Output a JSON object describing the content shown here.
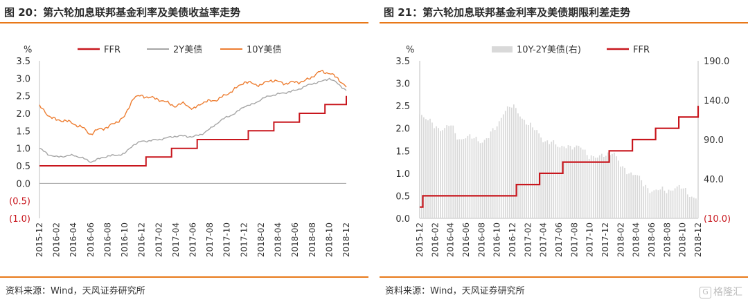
{
  "colors": {
    "accent": "#e87818",
    "ffr": "#c8161d",
    "y2": "#a5a5a5",
    "y10": "#ed7d31",
    "spread": "#d9d9d9",
    "negative_tick": "#c8161d"
  },
  "left": {
    "title": "图 20：第六轮加息联邦基金利率及美债收益率走势",
    "source": "资料来源：Wind，天风证券研究所"
  },
  "right": {
    "title": "图 21：第六轮加息联邦基金利率及美债期限利差走势",
    "source": "资料来源：Wind，天风证券研究所"
  },
  "watermark": {
    "icon": "G",
    "text": "格隆汇"
  },
  "chart_data": [
    {
      "type": "line",
      "unit_label": "%",
      "ylim": [
        -1.0,
        3.5
      ],
      "y_ticks": [
        "3.5",
        "3.0",
        "2.5",
        "2.0",
        "1.5",
        "1.0",
        "0.5",
        "0.0",
        "(0.5)",
        "(1.0)"
      ],
      "x_ticks": [
        "2015-12",
        "2016-02",
        "2016-04",
        "2016-06",
        "2016-08",
        "2016-10",
        "2016-12",
        "2017-02",
        "2017-04",
        "2017-06",
        "2017-08",
        "2017-10",
        "2017-12",
        "2018-02",
        "2018-04",
        "2018-06",
        "2018-08",
        "2018-10",
        "2018-12"
      ],
      "legend": [
        "FFR",
        "2Y美债",
        "10Y美债"
      ],
      "legend_position": "top",
      "series": [
        {
          "name": "FFR",
          "kind": "step",
          "points": [
            [
              0,
              0.5
            ],
            [
              12.5,
              0.75
            ],
            [
              15.5,
              1.0
            ],
            [
              18.5,
              1.25
            ],
            [
              24.5,
              1.5
            ],
            [
              27.5,
              1.75
            ],
            [
              30.5,
              2.0
            ],
            [
              33.5,
              2.25
            ],
            [
              36.0,
              2.5
            ]
          ]
        },
        {
          "name": "2Y美债",
          "points": [
            [
              0,
              1.0
            ],
            [
              1,
              0.83
            ],
            [
              2,
              0.75
            ],
            [
              3,
              0.78
            ],
            [
              4,
              0.8
            ],
            [
              5,
              0.73
            ],
            [
              6,
              0.61
            ],
            [
              7,
              0.7
            ],
            [
              8,
              0.78
            ],
            [
              9,
              0.8
            ],
            [
              10,
              0.85
            ],
            [
              11,
              1.1
            ],
            [
              12,
              1.2
            ],
            [
              13,
              1.22
            ],
            [
              14,
              1.25
            ],
            [
              15,
              1.3
            ],
            [
              16,
              1.35
            ],
            [
              17,
              1.35
            ],
            [
              18,
              1.33
            ],
            [
              19,
              1.4
            ],
            [
              20,
              1.55
            ],
            [
              21,
              1.75
            ],
            [
              22,
              1.9
            ],
            [
              23,
              2.0
            ],
            [
              24,
              2.2
            ],
            [
              25,
              2.25
            ],
            [
              26,
              2.4
            ],
            [
              27,
              2.5
            ],
            [
              28,
              2.55
            ],
            [
              29,
              2.6
            ],
            [
              30,
              2.65
            ],
            [
              31,
              2.75
            ],
            [
              32,
              2.85
            ],
            [
              33,
              2.9
            ],
            [
              34,
              3.0
            ],
            [
              35,
              2.85
            ],
            [
              36,
              2.65
            ]
          ]
        },
        {
          "name": "10Y美债",
          "points": [
            [
              0,
              2.2
            ],
            [
              1,
              1.95
            ],
            [
              2,
              1.8
            ],
            [
              3,
              1.8
            ],
            [
              4,
              1.7
            ],
            [
              5,
              1.6
            ],
            [
              6,
              1.4
            ],
            [
              7,
              1.55
            ],
            [
              8,
              1.6
            ],
            [
              9,
              1.75
            ],
            [
              10,
              1.9
            ],
            [
              11,
              2.45
            ],
            [
              12,
              2.5
            ],
            [
              13,
              2.45
            ],
            [
              14,
              2.4
            ],
            [
              15,
              2.3
            ],
            [
              16,
              2.2
            ],
            [
              17,
              2.3
            ],
            [
              18,
              2.1
            ],
            [
              19,
              2.3
            ],
            [
              20,
              2.35
            ],
            [
              21,
              2.4
            ],
            [
              22,
              2.55
            ],
            [
              23,
              2.7
            ],
            [
              24,
              2.9
            ],
            [
              25,
              2.85
            ],
            [
              26,
              2.8
            ],
            [
              27,
              2.95
            ],
            [
              28,
              2.9
            ],
            [
              29,
              2.85
            ],
            [
              30,
              2.9
            ],
            [
              31,
              2.9
            ],
            [
              32,
              3.05
            ],
            [
              33,
              3.2
            ],
            [
              34,
              3.15
            ],
            [
              35,
              3.0
            ],
            [
              36,
              2.75
            ]
          ]
        }
      ]
    },
    {
      "type": "bar+line",
      "unit_label": "%",
      "ylim_left": [
        0.0,
        3.5
      ],
      "ylim_right": [
        -10.0,
        190.0
      ],
      "y_ticks_left": [
        "3.5",
        "3.0",
        "2.5",
        "2.0",
        "1.5",
        "1.0",
        "0.5",
        "0.0"
      ],
      "y_ticks_right": [
        "190.0",
        "140.0",
        "90.0",
        "40.0",
        "(10.0)"
      ],
      "x_ticks": [
        "2015-12",
        "2016-02",
        "2016-04",
        "2016-06",
        "2016-08",
        "2016-10",
        "2016-12",
        "2017-02",
        "2017-04",
        "2017-06",
        "2017-08",
        "2017-10",
        "2017-12",
        "2018-02",
        "2018-04",
        "2018-06",
        "2018-08",
        "2018-10",
        "2018-12"
      ],
      "legend": [
        "10Y-2Y美债(右)",
        "FFR"
      ],
      "legend_position": "top",
      "series": [
        {
          "name": "10Y-2Y美债(右)",
          "axis": "right",
          "kind": "bar",
          "points": [
            [
              0,
              125
            ],
            [
              1,
              115
            ],
            [
              2,
              105
            ],
            [
              3,
              105
            ],
            [
              4,
              108
            ],
            [
              5,
              90
            ],
            [
              6,
              95
            ],
            [
              7,
              90
            ],
            [
              8,
              88
            ],
            [
              9,
              95
            ],
            [
              10,
              105
            ],
            [
              11,
              130
            ],
            [
              12,
              132
            ],
            [
              13,
              120
            ],
            [
              14,
              112
            ],
            [
              15,
              100
            ],
            [
              16,
              90
            ],
            [
              17,
              88
            ],
            [
              18,
              78
            ],
            [
              19,
              85
            ],
            [
              20,
              78
            ],
            [
              21,
              80
            ],
            [
              22,
              70
            ],
            [
              23,
              65
            ],
            [
              24,
              72
            ],
            [
              25,
              75
            ],
            [
              26,
              55
            ],
            [
              27,
              50
            ],
            [
              28,
              45
            ],
            [
              29,
              32
            ],
            [
              30,
              26
            ],
            [
              31,
              25
            ],
            [
              32,
              25
            ],
            [
              33,
              30
            ],
            [
              34,
              27
            ],
            [
              35,
              20
            ],
            [
              36,
              15
            ]
          ]
        },
        {
          "name": "FFR",
          "axis": "left",
          "kind": "step",
          "points": [
            [
              0,
              0.25
            ],
            [
              0.4,
              0.5
            ],
            [
              12.5,
              0.75
            ],
            [
              15.5,
              1.0
            ],
            [
              18.5,
              1.25
            ],
            [
              24.5,
              1.5
            ],
            [
              27.5,
              1.75
            ],
            [
              30.5,
              2.0
            ],
            [
              33.5,
              2.25
            ],
            [
              36.0,
              2.5
            ]
          ]
        }
      ]
    }
  ]
}
